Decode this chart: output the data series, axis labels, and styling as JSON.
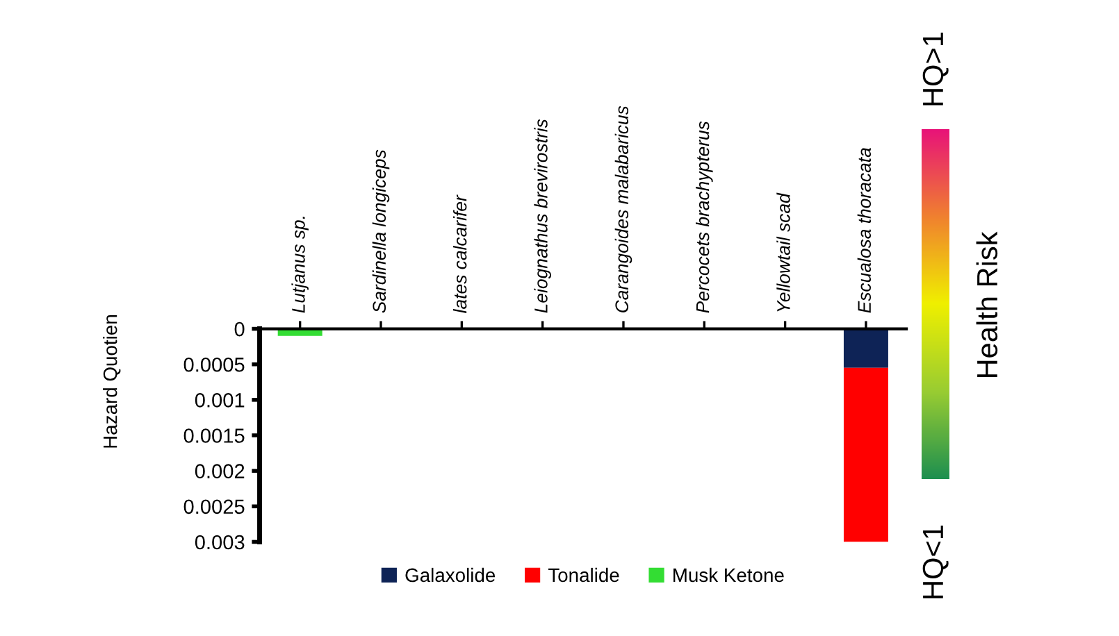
{
  "chart_data": {
    "type": "bar",
    "stacked": true,
    "ylabel": "Hazard Quotien",
    "categories": [
      "Lutjanus sp.",
      "Sardinella longiceps",
      "lates calcarifer",
      "Leiognathus brevirostris",
      "Carangoides malabaricus",
      "Percocets brachypterus",
      "Yellowtail scad",
      "Escualosa thoracata"
    ],
    "series": [
      {
        "name": "Galaxolide",
        "color": "#0e2356",
        "values": [
          0,
          0,
          0,
          0,
          0,
          0,
          0,
          0.00055
        ]
      },
      {
        "name": "Tonalide",
        "color": "#ff0000",
        "values": [
          0,
          0,
          0,
          0,
          0,
          0,
          0,
          0.00245
        ]
      },
      {
        "name": "Musk Ketone",
        "color": "#33dd33",
        "values": [
          0.0001,
          0,
          0,
          0,
          0,
          0,
          0,
          0
        ]
      }
    ],
    "ylim": [
      0.003,
      0
    ],
    "yticks": [
      0,
      0.0005,
      0.001,
      0.0015,
      0.002,
      0.0025,
      0.003
    ],
    "legend": "bottom",
    "grid": false,
    "annotations": [
      "HQ>1",
      "Health Risk",
      "HQ<1"
    ]
  }
}
